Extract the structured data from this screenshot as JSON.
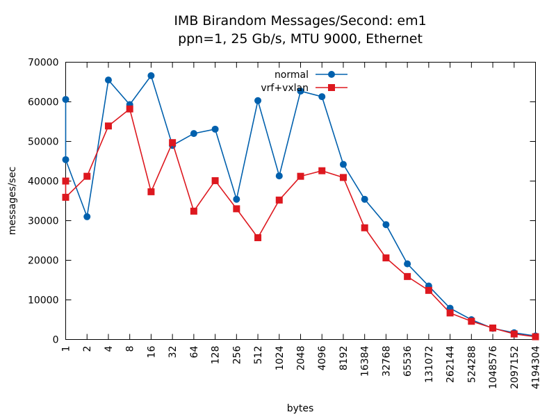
{
  "chart_data": {
    "type": "line",
    "title": "IMB Birandom Messages/Second: em1",
    "subtitle": "ppn=1, 25 Gb/s, MTU 9000, Ethernet",
    "xlabel": "bytes",
    "ylabel": "messages/sec",
    "ylim": [
      0,
      70000
    ],
    "yticks": [
      "0",
      "10000",
      "20000",
      "30000",
      "40000",
      "50000",
      "60000",
      "70000"
    ],
    "x_scale": "log2",
    "legend_position": "top-center",
    "grid": false,
    "categories": [
      "1",
      "2",
      "4",
      "8",
      "16",
      "32",
      "64",
      "128",
      "256",
      "512",
      "1024",
      "2048",
      "4096",
      "8192",
      "16384",
      "32768",
      "65536",
      "131072",
      "262144",
      "524288",
      "1048576",
      "2097152",
      "4194304"
    ],
    "series": [
      {
        "name": "normal",
        "color": "#0060ad",
        "marker": "circle",
        "first_point_extra": 60600,
        "values": [
          45400,
          31000,
          65500,
          59300,
          66600,
          49000,
          52000,
          53100,
          35400,
          60300,
          41300,
          62700,
          61300,
          44200,
          35400,
          29000,
          19100,
          13500,
          7900,
          5000,
          2800,
          1700,
          900
        ]
      },
      {
        "name": "vrf+vxlan",
        "color": "#dd181f",
        "marker": "square",
        "first_point_extra": 40000,
        "values": [
          35900,
          41200,
          53900,
          58200,
          37300,
          49700,
          32400,
          40100,
          33000,
          25700,
          35200,
          41200,
          42600,
          40900,
          28200,
          20600,
          15900,
          12400,
          6700,
          4600,
          2900,
          1400,
          700
        ]
      }
    ]
  }
}
